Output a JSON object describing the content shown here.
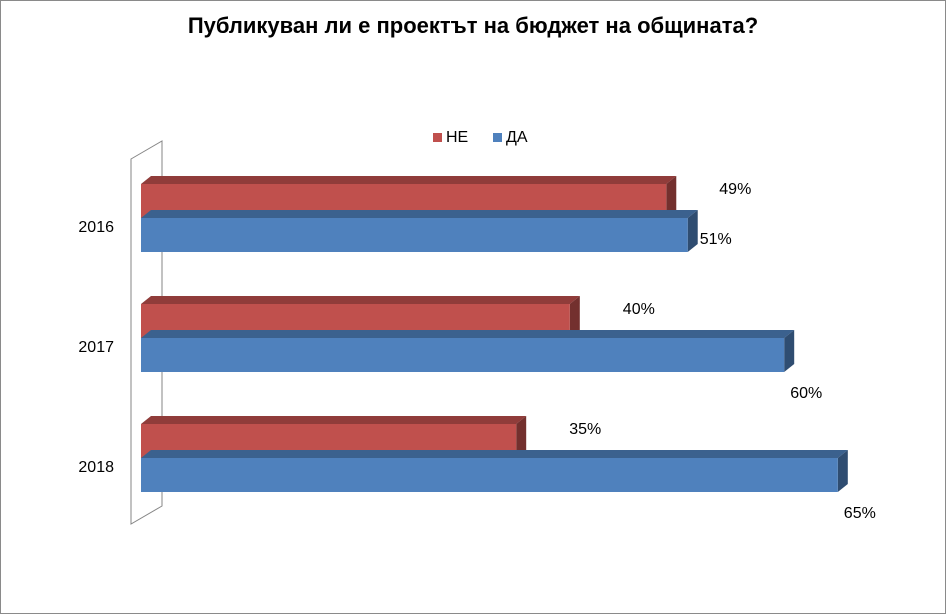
{
  "chart_data": {
    "type": "bar",
    "orientation": "horizontal",
    "style": "3d",
    "title": "Публикуван ли е проектът на бюджет на общината?",
    "categories": [
      "2016",
      "2017",
      "2018"
    ],
    "series": [
      {
        "name": "НЕ",
        "values": [
          49,
          40,
          35
        ],
        "labels": [
          "49%",
          "40%",
          "35%"
        ],
        "color": "#c0504d"
      },
      {
        "name": "ДА",
        "values": [
          51,
          60,
          65
        ],
        "labels": [
          "51%",
          "60%",
          "65%"
        ],
        "color": "#4f81bd"
      }
    ],
    "xlim": [
      0,
      100
    ],
    "legend": "top",
    "grid": false
  }
}
